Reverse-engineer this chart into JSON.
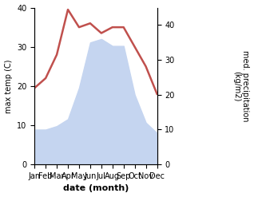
{
  "months": [
    "Jan",
    "Feb",
    "Mar",
    "Apr",
    "May",
    "Jun",
    "Jul",
    "Aug",
    "Sep",
    "Oct",
    "Nov",
    "Dec"
  ],
  "month_positions": [
    0,
    1,
    2,
    3,
    4,
    5,
    6,
    7,
    8,
    9,
    10,
    11
  ],
  "temperature": [
    19.5,
    22,
    28,
    39.5,
    35,
    36,
    33.5,
    35,
    35,
    30,
    25,
    18
  ],
  "precipitation": [
    10,
    10,
    11,
    13,
    22,
    35,
    36,
    34,
    34,
    20,
    12,
    9
  ],
  "temp_color": "#c0504d",
  "precip_fill_color": "#c5d5f0",
  "xlabel": "date (month)",
  "ylabel_left": "max temp (C)",
  "ylabel_right": "med. precipitation\n(kg/m2)",
  "ylim_left": [
    0,
    40
  ],
  "ylim_right": [
    0,
    45
  ],
  "yticks_left": [
    0,
    10,
    20,
    30,
    40
  ],
  "yticks_right": [
    0,
    10,
    20,
    30,
    40
  ],
  "background_color": "#ffffff"
}
